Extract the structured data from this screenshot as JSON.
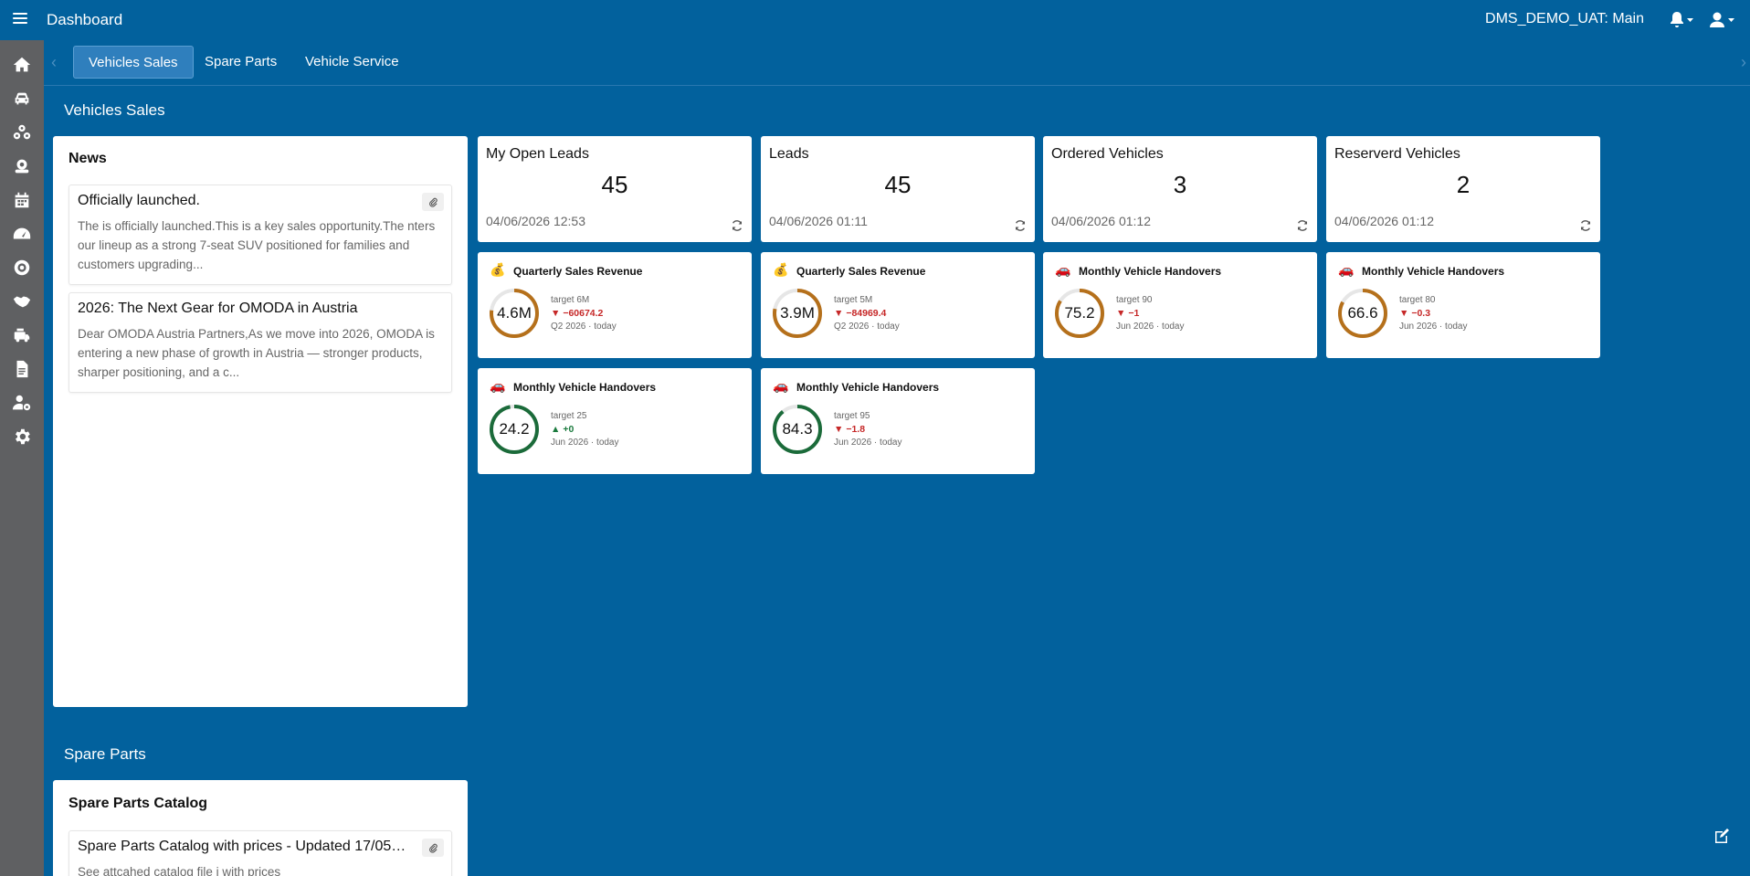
{
  "header": {
    "title": "Dashboard",
    "branch": "DMS_DEMO_UAT: Main"
  },
  "sidebar": {
    "items": [
      "home-icon",
      "car-icon",
      "parts-icon",
      "service-icon",
      "calendar-icon",
      "speedometer-icon",
      "tire-icon",
      "handshake-icon",
      "fleet-icon",
      "document-icon",
      "user-settings-icon",
      "gear-icon"
    ]
  },
  "tabs": [
    {
      "label": "Vehicles Sales",
      "active": true
    },
    {
      "label": "Spare Parts",
      "active": false
    },
    {
      "label": "Vehicle Service",
      "active": false
    }
  ],
  "sections": {
    "vehicles_sales": "Vehicles Sales",
    "spare_parts": "Spare Parts"
  },
  "news": {
    "title": "News",
    "items": [
      {
        "title": "Officially launched.",
        "body": "The is officially launched.This is a key sales opportunity.The nters our lineup as a strong 7-seat SUV positioned for families and customers upgrading...",
        "has_attachment": true
      },
      {
        "title": "2026: The Next Gear for OMODA in Austria",
        "body": "Dear OMODA Austria Partners,As we move into 2026, OMODA is entering a new phase of growth in Austria — stronger products, sharper positioning, and a c...",
        "has_attachment": false
      }
    ]
  },
  "kpis": [
    {
      "title": "My Open Leads",
      "value": "45",
      "date": "04/06/2026 12:53"
    },
    {
      "title": "Leads",
      "value": "45",
      "date": "04/06/2026 01:11"
    },
    {
      "title": "Ordered Vehicles",
      "value": "3",
      "date": "04/06/2026 01:12"
    },
    {
      "title": "Reserverd Vehicles",
      "value": "2",
      "date": "04/06/2026 01:12"
    }
  ],
  "gauges": [
    {
      "emoji": "💰",
      "title": "Quarterly Sales Revenue",
      "value": "4.6M",
      "target": "target 6M",
      "delta": "−60674.2",
      "trend": "down",
      "period": "Q2 2026 · today",
      "progress": 0.77,
      "color": "#b5701b"
    },
    {
      "emoji": "💰",
      "title": "Quarterly Sales Revenue",
      "value": "3.9M",
      "target": "target 5M",
      "delta": "−84969.4",
      "trend": "down",
      "period": "Q2 2026 · today",
      "progress": 0.78,
      "color": "#b5701b"
    },
    {
      "emoji": "🚗",
      "title": "Monthly Vehicle Handovers",
      "value": "75.2",
      "target": "target 90",
      "delta": "−1",
      "trend": "down",
      "period": "Jun 2026 · today",
      "progress": 0.84,
      "color": "#b5701b"
    },
    {
      "emoji": "🚗",
      "title": "Monthly Vehicle Handovers",
      "value": "66.6",
      "target": "target 80",
      "delta": "−0.3",
      "trend": "down",
      "period": "Jun 2026 · today",
      "progress": 0.83,
      "color": "#b5701b"
    },
    {
      "emoji": "🚗",
      "title": "Monthly Vehicle Handovers",
      "value": "24.2",
      "target": "target 25",
      "delta": "+0",
      "trend": "up",
      "period": "Jun 2026 · today",
      "progress": 0.97,
      "color": "#1b6b3a"
    },
    {
      "emoji": "🚗",
      "title": "Monthly Vehicle Handovers",
      "value": "84.3",
      "target": "target 95",
      "delta": "−1.8",
      "trend": "down",
      "period": "Jun 2026 · today",
      "progress": 0.89,
      "color": "#1b6b3a"
    }
  ],
  "spare_parts_catalog": {
    "title": "Spare Parts Catalog",
    "items": [
      {
        "title": "Spare Parts Catalog with prices - Updated 17/05/...",
        "body": "See attcahed catalog file i with prices",
        "has_attachment": true
      }
    ]
  }
}
